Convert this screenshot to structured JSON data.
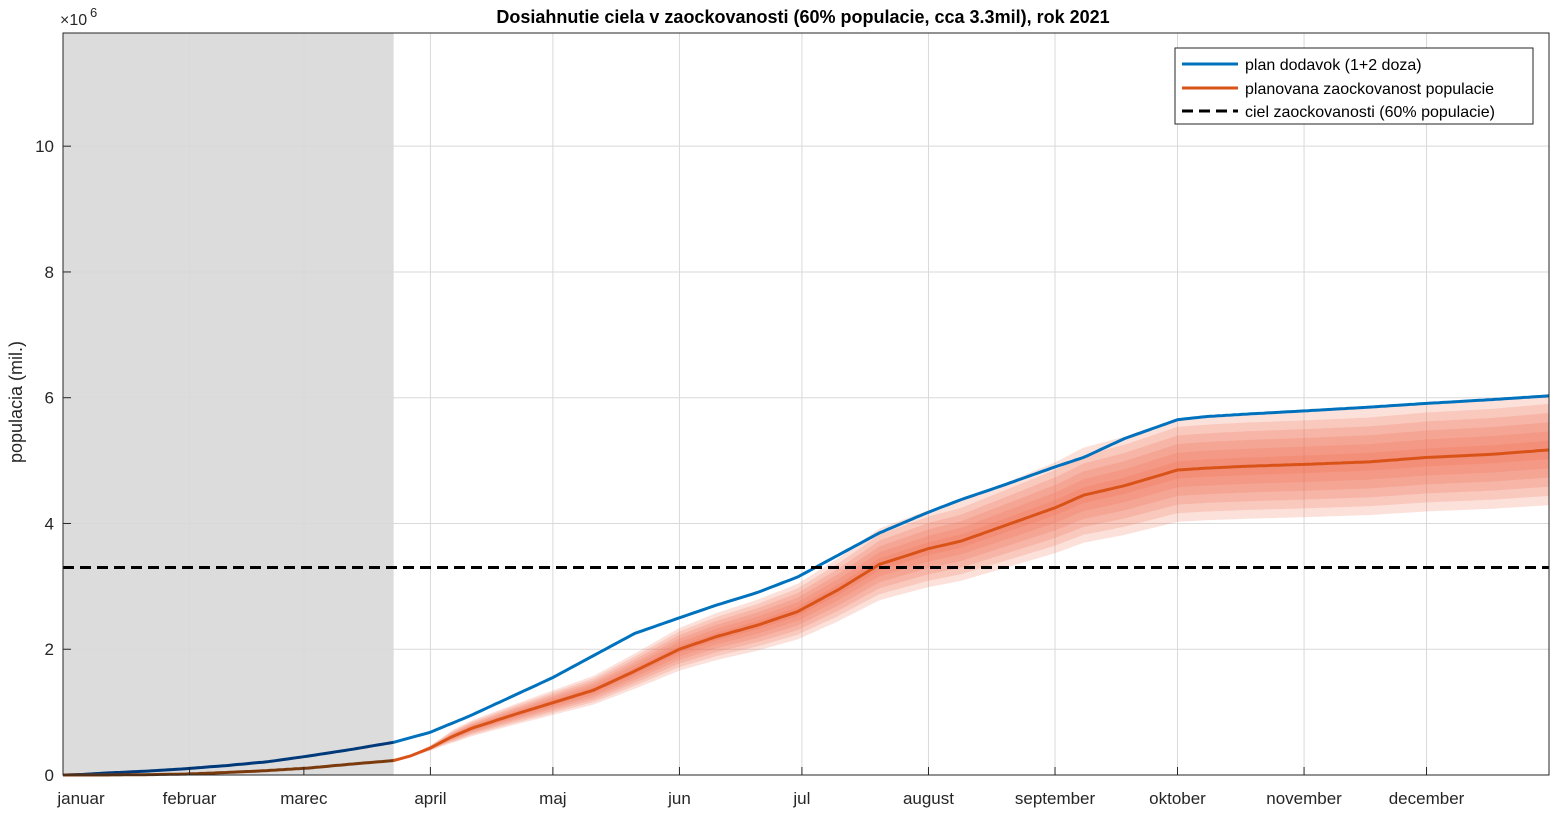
{
  "chart_data": {
    "type": "line",
    "title": "Dosiahnutie ciela v zaockovanosti (60% populacie, cca 3.3mil), rok 2021",
    "ylabel": "populacia (mil.)",
    "xlabel": "",
    "y_exponent_prefix": "×10",
    "y_exponent_power": "6",
    "xlim": [
      0,
      364
    ],
    "ylim": [
      0,
      11800000
    ],
    "grid": true,
    "legend_position": "top-right",
    "x_ticks": [
      {
        "day": 0,
        "label": "januar"
      },
      {
        "day": 31,
        "label": "februar"
      },
      {
        "day": 59,
        "label": "marec"
      },
      {
        "day": 90,
        "label": "april"
      },
      {
        "day": 120,
        "label": "maj"
      },
      {
        "day": 151,
        "label": "jun"
      },
      {
        "day": 181,
        "label": "jul"
      },
      {
        "day": 212,
        "label": "august"
      },
      {
        "day": 243,
        "label": "september"
      },
      {
        "day": 273,
        "label": "oktober"
      },
      {
        "day": 304,
        "label": "november"
      },
      {
        "day": 334,
        "label": "december"
      }
    ],
    "y_ticks": [
      {
        "value": 0,
        "label": "0"
      },
      {
        "value": 2000000,
        "label": "2"
      },
      {
        "value": 4000000,
        "label": "4"
      },
      {
        "value": 6000000,
        "label": "6"
      },
      {
        "value": 8000000,
        "label": "8"
      },
      {
        "value": 10000000,
        "label": "10"
      }
    ],
    "shaded_region": {
      "x_start": 0,
      "x_end": 81,
      "color": "#dcdcdc"
    },
    "series": [
      {
        "name": "plan dodavok (1+2 doza)",
        "color": "#0072bd",
        "past_color": "#00397a",
        "x": [
          0,
          5,
          10,
          20,
          30,
          40,
          50,
          60,
          70,
          81,
          90,
          100,
          110,
          120,
          130,
          140,
          151,
          160,
          170,
          180,
          190,
          200,
          212,
          220,
          230,
          243,
          250,
          260,
          273,
          280,
          290,
          304,
          320,
          334,
          350,
          364
        ],
        "values": [
          0,
          10000,
          30000,
          60000,
          100000,
          150000,
          210000,
          300000,
          400000,
          520000,
          680000,
          950000,
          1250000,
          1550000,
          1900000,
          2250000,
          2500000,
          2700000,
          2900000,
          3150000,
          3500000,
          3850000,
          4180000,
          4380000,
          4600000,
          4900000,
          5050000,
          5350000,
          5650000,
          5700000,
          5740000,
          5790000,
          5850000,
          5910000,
          5970000,
          6030000
        ]
      },
      {
        "name": "planovana zaockovanost populacie",
        "color": "#d95319",
        "past_color": "#7a3a0c",
        "band_color": "#f26b4a",
        "x": [
          0,
          10,
          20,
          30,
          40,
          50,
          60,
          70,
          81,
          85,
          90,
          95,
          100,
          110,
          120,
          130,
          140,
          151,
          160,
          170,
          180,
          190,
          200,
          212,
          220,
          230,
          243,
          250,
          260,
          273,
          280,
          290,
          304,
          320,
          334,
          350,
          364
        ],
        "values": [
          0,
          0,
          5000,
          15000,
          40000,
          70000,
          110000,
          170000,
          230000,
          300000,
          430000,
          600000,
          740000,
          950000,
          1150000,
          1350000,
          1650000,
          2000000,
          2200000,
          2380000,
          2600000,
          2950000,
          3350000,
          3600000,
          3720000,
          3950000,
          4250000,
          4450000,
          4600000,
          4850000,
          4880000,
          4910000,
          4940000,
          4980000,
          5050000,
          5100000,
          5170000
        ],
        "band_spread_fraction": 0.17
      },
      {
        "name": "ciel zaockovanosti (60% populacie)",
        "color": "#000000",
        "style": "dashed",
        "x": [
          0,
          364
        ],
        "values": [
          3300000,
          3300000
        ]
      }
    ]
  }
}
